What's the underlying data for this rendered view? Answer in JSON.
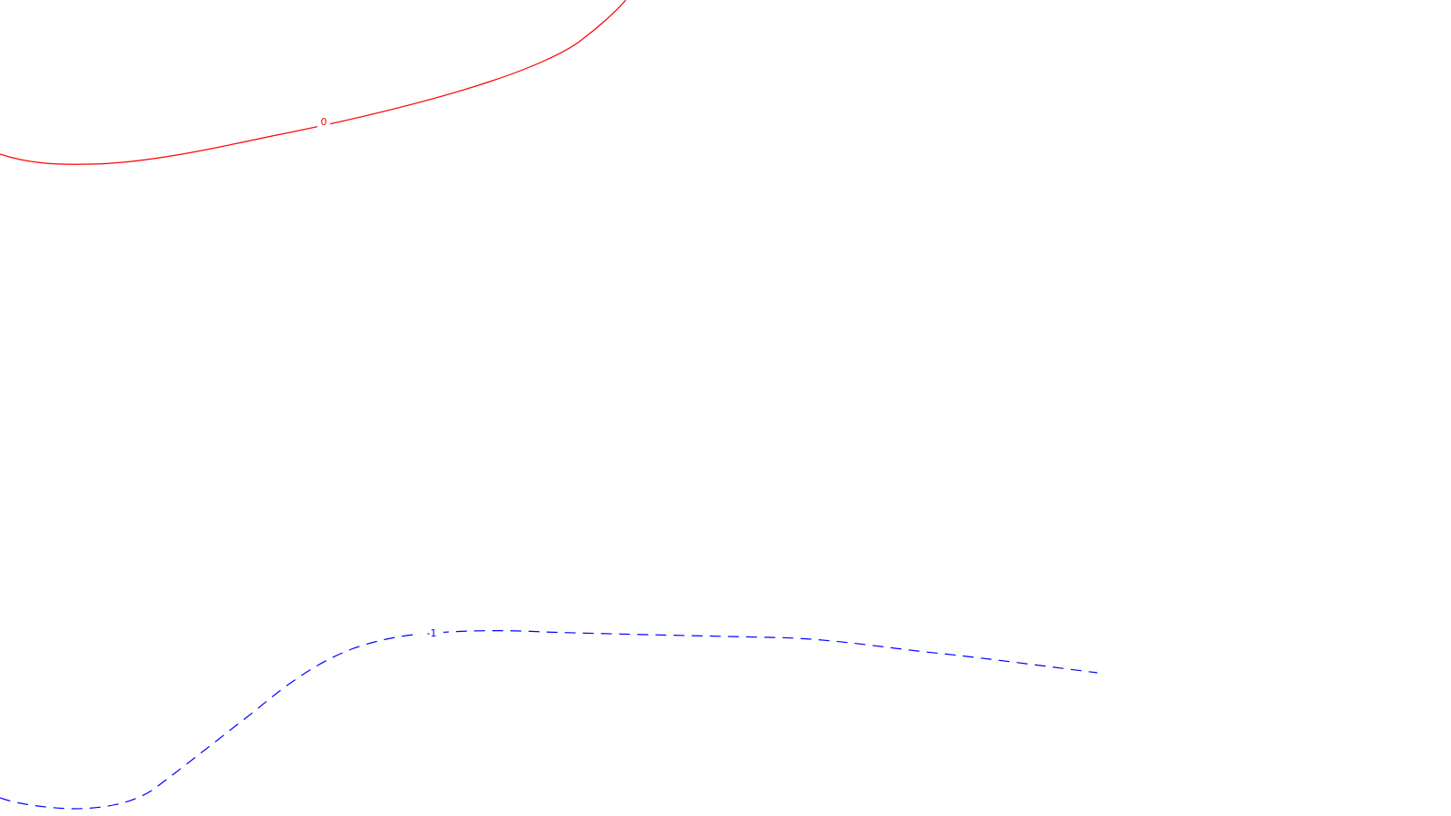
{
  "contours": [
    {
      "label": "0",
      "color": "#ff0000",
      "style": "solid"
    },
    {
      "label": "-1",
      "color": "#0000ff",
      "style": "dashed"
    }
  ]
}
